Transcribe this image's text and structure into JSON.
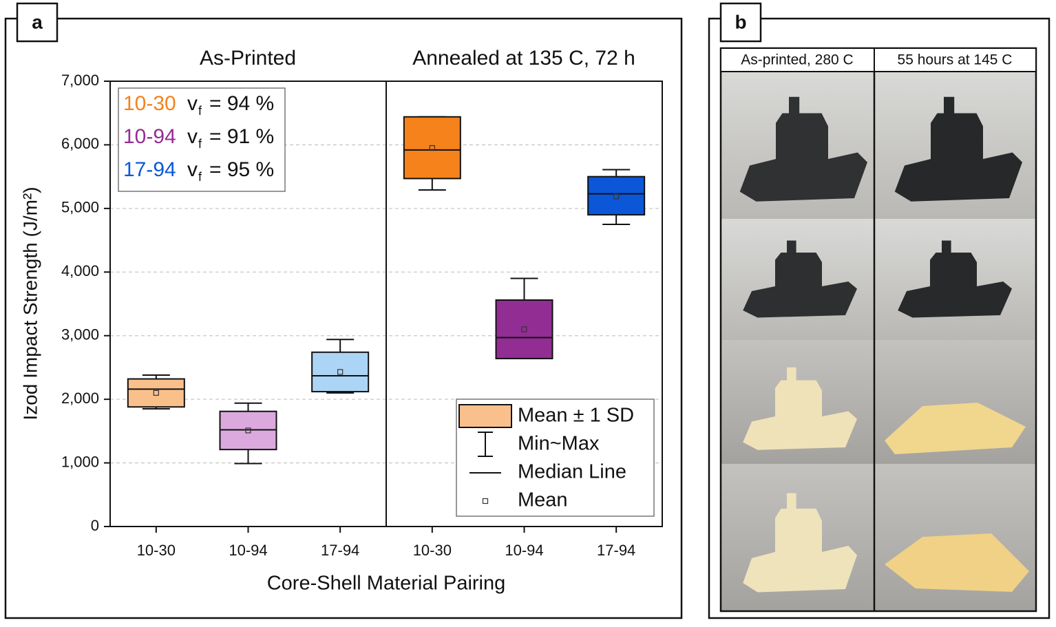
{
  "chart_data": {
    "type": "box",
    "panel_label": "a",
    "panel_titles": [
      "As-Printed",
      "Annealed at 135 C, 72 h"
    ],
    "x_label": "Core-Shell Material Pairing",
    "y_label": "Izod Impact Strength (J/m²)",
    "categories": [
      "10-30",
      "10-94",
      "17-94",
      "10-30",
      "10-94",
      "17-94"
    ],
    "colors": [
      "#f9c08c",
      "#dca9de",
      "#acd4f4",
      "#f5821a",
      "#922d94",
      "#0b57d8"
    ],
    "max": [
      2380,
      1940,
      2940,
      6440,
      3900,
      5610
    ],
    "min": [
      1850,
      990,
      2100,
      5290,
      2690,
      4750
    ],
    "box_high": [
      2320,
      1810,
      2740,
      6440,
      3560,
      5500
    ],
    "box_low": [
      1880,
      1210,
      2120,
      5470,
      2640,
      4900
    ],
    "median": [
      2160,
      1520,
      2370,
      5920,
      2970,
      5230
    ],
    "mean": [
      2100,
      1510,
      2430,
      5950,
      3100,
      5190
    ],
    "ylim": [
      0,
      7000
    ],
    "yticks": [
      0,
      {
        "value": 1000,
        "label": "1,000"
      },
      {
        "value": 2000,
        "label": "2,000"
      },
      {
        "value": 3000,
        "label": "3,000"
      },
      {
        "value": 4000,
        "label": "4,000"
      },
      {
        "value": 5000,
        "label": "5,000"
      },
      {
        "value": 6000,
        "label": "6,000"
      },
      {
        "value": 7000,
        "label": "7,000"
      }
    ],
    "grid": true,
    "annotations": [
      {
        "pairing": "10-30",
        "symbol": "v",
        "subscript": "f",
        "text": "= 94 %",
        "color": "#f5821a"
      },
      {
        "pairing": "10-94",
        "symbol": "v",
        "subscript": "f",
        "text": "= 91 %",
        "color": "#922d94"
      },
      {
        "pairing": "17-94",
        "symbol": "v",
        "subscript": "f",
        "text": "= 95 %",
        "color": "#0b57d8"
      }
    ],
    "legend": [
      "Mean ± 1 SD",
      "Min~Max",
      "Median Line",
      "Mean"
    ],
    "legend_color": "#f9c08c"
  },
  "photo_panel": {
    "panel_label": "b",
    "columns": [
      "As-printed, 280 C",
      "55 hours at 145 C"
    ]
  }
}
